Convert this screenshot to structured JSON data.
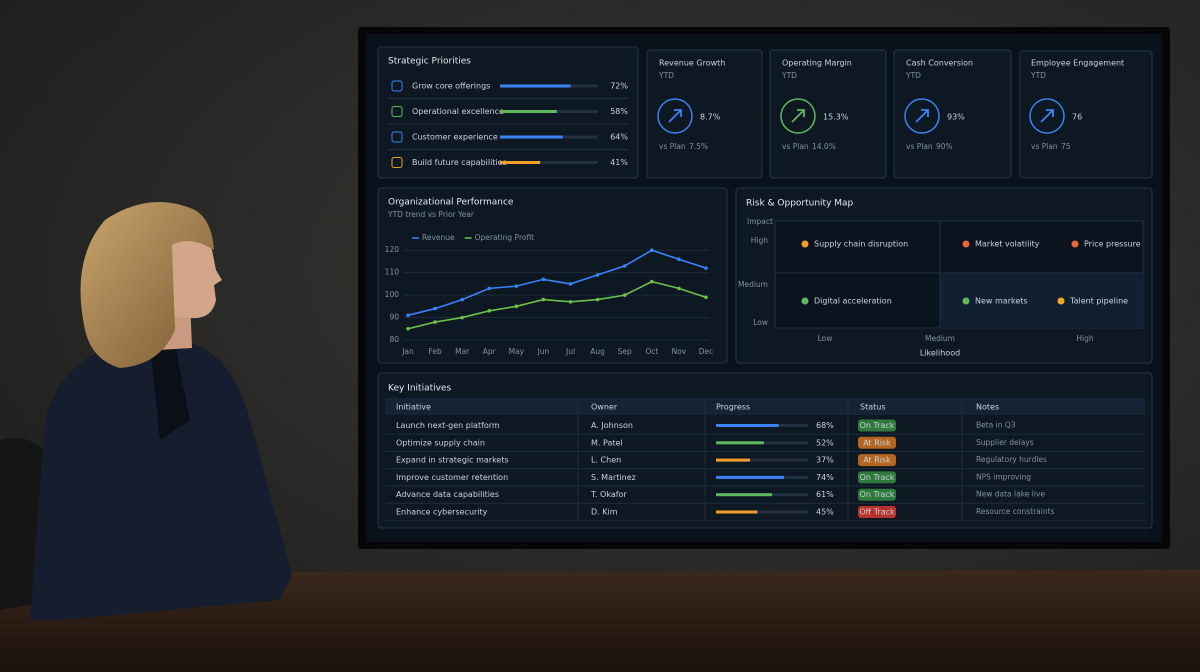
{
  "priorities": {
    "title": "Strategic Priorities",
    "items": [
      {
        "label": "Grow core offerings",
        "value": 72,
        "value_label": "72%",
        "color": "#3b82f6"
      },
      {
        "label": "Operational excellence",
        "value": 58,
        "value_label": "58%",
        "color": "#5fb85f"
      },
      {
        "label": "Customer experience",
        "value": 64,
        "value_label": "64%",
        "color": "#3b82f6"
      },
      {
        "label": "Build future capabilities",
        "value": 41,
        "value_label": "41%",
        "color": "#f59e2a"
      }
    ]
  },
  "kpis": [
    {
      "title": "Revenue Growth",
      "period": "YTD",
      "value": "8.7%",
      "compare": "vs Plan",
      "plan": "7.5%",
      "color": "#3b82f6"
    },
    {
      "title": "Operating Margin",
      "period": "YTD",
      "value": "15.3%",
      "compare": "vs Plan",
      "plan": "14.0%",
      "color": "#5fb85f"
    },
    {
      "title": "Cash Conversion",
      "period": "YTD",
      "value": "93%",
      "compare": "vs Plan",
      "plan": "90%",
      "color": "#3b82f6"
    },
    {
      "title": "Employee Engagement",
      "period": "YTD",
      "value": "76",
      "compare": "vs Plan",
      "plan": "75",
      "color": "#3b82f6"
    }
  ],
  "chart_data": {
    "type": "line",
    "title": "Organizational Performance",
    "subtitle": "YTD trend vs Prior Year",
    "categories": [
      "Jan",
      "Feb",
      "Mar",
      "Apr",
      "May",
      "Jun",
      "Jul",
      "Aug",
      "Sep",
      "Oct",
      "Nov",
      "Dec"
    ],
    "series": [
      {
        "name": "Revenue",
        "color": "#3b82f6",
        "values": [
          91,
          94,
          98,
          103,
          104,
          107,
          105,
          109,
          113,
          120,
          116,
          112
        ]
      },
      {
        "name": "Operating Profit",
        "color": "#6cc04a",
        "values": [
          85,
          88,
          90,
          93,
          95,
          98,
          97,
          98,
          100,
          106,
          103,
          99
        ]
      }
    ],
    "ylim": [
      80,
      125
    ],
    "yticks": [
      80,
      90,
      100,
      110,
      120
    ],
    "grid": true
  },
  "risk_map": {
    "title": "Risk & Opportunity Map",
    "y_axis_label": "Impact",
    "y_levels": [
      "High",
      "Medium",
      "Low"
    ],
    "x_levels": [
      "Low",
      "Medium",
      "High"
    ],
    "x_axis_label": "Likelihood",
    "items": [
      {
        "label": "Supply chain disruption",
        "color": "#f59e2a"
      },
      {
        "label": "Market volatility",
        "color": "#e8662f"
      },
      {
        "label": "Price pressure",
        "color": "#e8662f"
      },
      {
        "label": "Digital acceleration",
        "color": "#5fb85f"
      },
      {
        "label": "New markets",
        "color": "#5fb85f"
      },
      {
        "label": "Talent pipeline",
        "color": "#f5a623"
      }
    ]
  },
  "initiatives": {
    "title": "Key Initiatives",
    "headers": [
      "Initiative",
      "Owner",
      "Progress",
      "Status",
      "Notes"
    ],
    "rows": [
      {
        "initiative": "Launch next-gen platform",
        "owner": "A. Johnson",
        "progress": 68,
        "progress_label": "68%",
        "progress_color": "#3b82f6",
        "status": "On Track",
        "status_color": "#2f7a3a",
        "notes": "Beta in Q3"
      },
      {
        "initiative": "Optimize supply chain",
        "owner": "M. Patel",
        "progress": 52,
        "progress_label": "52%",
        "progress_color": "#5fb85f",
        "status": "At Risk",
        "status_color": "#b5651d",
        "notes": "Supplier delays"
      },
      {
        "initiative": "Expand in strategic markets",
        "owner": "L. Chen",
        "progress": 37,
        "progress_label": "37%",
        "progress_color": "#f59e2a",
        "status": "At Risk",
        "status_color": "#b5651d",
        "notes": "Regulatory hurdles"
      },
      {
        "initiative": "Improve customer retention",
        "owner": "S. Martinez",
        "progress": 74,
        "progress_label": "74%",
        "progress_color": "#3b82f6",
        "status": "On Track",
        "status_color": "#2f7a3a",
        "notes": "NPS improving"
      },
      {
        "initiative": "Advance data capabilities",
        "owner": "T. Okafor",
        "progress": 61,
        "progress_label": "61%",
        "progress_color": "#5fb85f",
        "status": "On Track",
        "status_color": "#2f7a3a",
        "notes": "New data lake live"
      },
      {
        "initiative": "Enhance cybersecurity",
        "owner": "D. Kim",
        "progress": 45,
        "progress_label": "45%",
        "progress_color": "#f59e2a",
        "status": "Off Track",
        "status_color": "#b8322c",
        "notes": "Resource constraints"
      }
    ]
  }
}
